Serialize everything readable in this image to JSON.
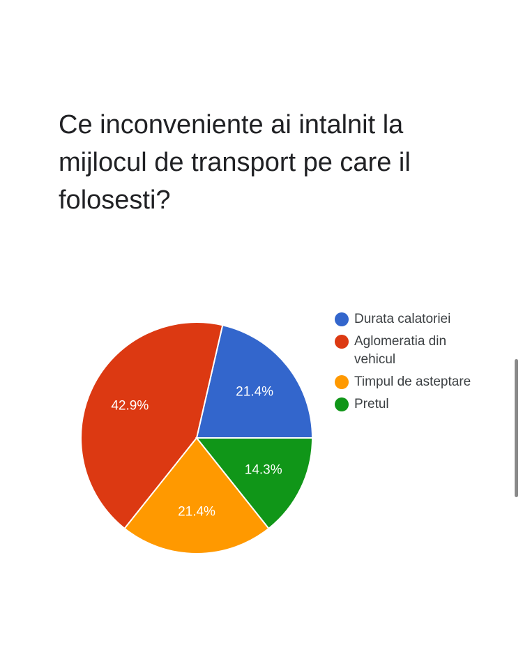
{
  "question": {
    "title": "Ce inconveniente ai intalnit la mijlocul de transport pe care il folosesti?"
  },
  "chart_data": {
    "type": "pie",
    "categories": [
      "Durata calatoriei",
      "Aglomeratia din vehicul",
      "Timpul de asteptare",
      "Pretul"
    ],
    "values": [
      21.4,
      42.9,
      21.4,
      14.3
    ],
    "labels": [
      "21.4%",
      "42.9%",
      "21.4%",
      "14.3%"
    ],
    "colors": [
      "#3366cc",
      "#dc3912",
      "#ff9900",
      "#109618"
    ],
    "title": "",
    "legend_position": "right"
  }
}
